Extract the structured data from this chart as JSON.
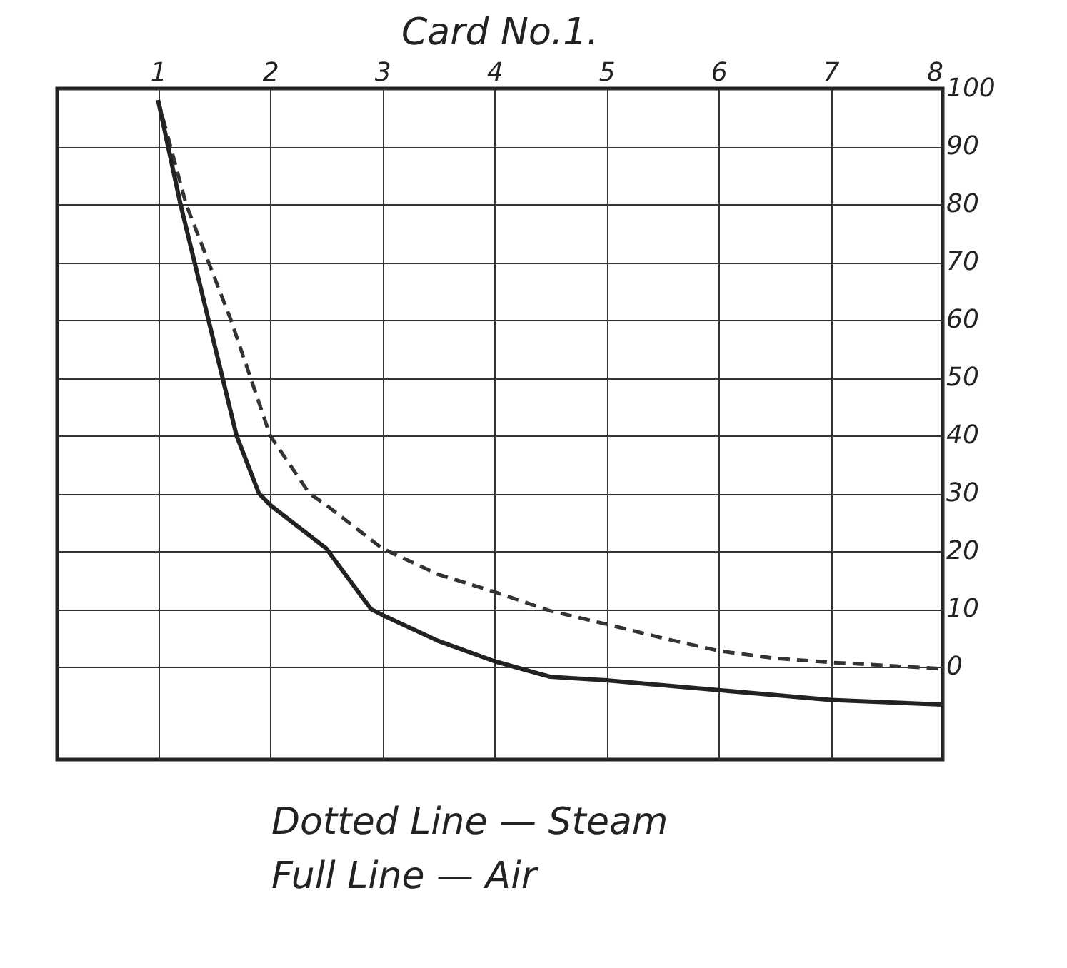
{
  "chart_data": {
    "type": "line",
    "title": "Card No.1.",
    "annotations": [
      "Dotted Line — Steam",
      "Full Line — Air"
    ],
    "xlim": [
      0.1,
      8
    ],
    "xticks": [
      1,
      2,
      3,
      4,
      5,
      6,
      7,
      8
    ],
    "ylim": [
      -16,
      100
    ],
    "yticks": [
      0,
      10,
      20,
      30,
      40,
      50,
      60,
      70,
      80,
      90,
      100
    ],
    "grid": true,
    "marker": "none",
    "series": [
      {
        "color": "#333333",
        "line_style": "dashed",
        "x": [
          1,
          1.25,
          1.65,
          2,
          2.35,
          2.5,
          3,
          3.5,
          4,
          4.5,
          5,
          5.5,
          6,
          6.5,
          7,
          8
        ],
        "values": [
          98,
          80,
          60,
          40,
          30,
          28,
          20.5,
          16,
          13,
          9.7,
          7.4,
          5,
          2.8,
          1.5,
          0.8,
          -0.3
        ]
      },
      {
        "color": "#222222",
        "line_style": "solid",
        "x": [
          1,
          1.2,
          1.45,
          1.7,
          1.9,
          2,
          2.5,
          2.9,
          3,
          3.5,
          4,
          4.5,
          5,
          6,
          7,
          8
        ],
        "values": [
          98,
          80,
          60,
          40,
          30,
          28,
          20.5,
          10,
          9,
          4.5,
          1,
          -1.7,
          -2.3,
          -4,
          -5.7,
          -6.5
        ]
      }
    ]
  }
}
